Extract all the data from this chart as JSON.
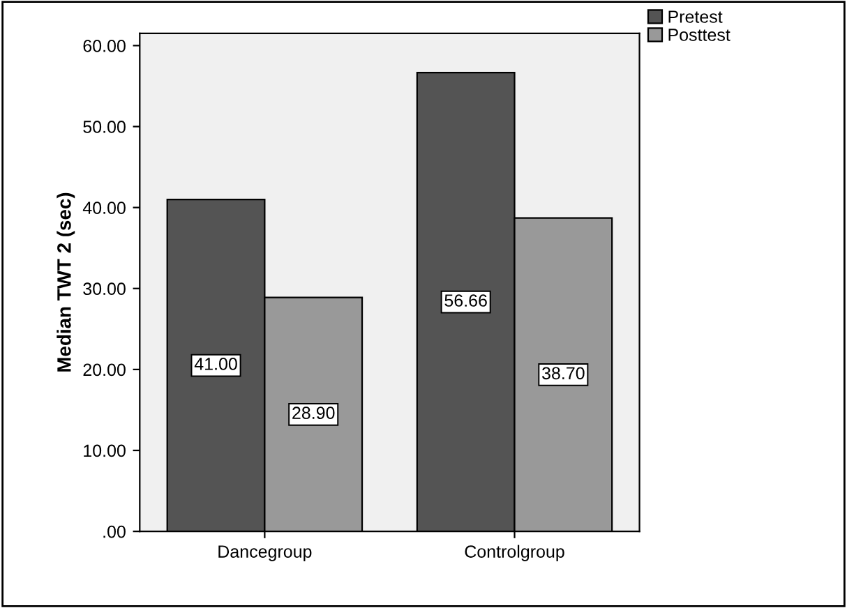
{
  "chart_data": {
    "type": "bar",
    "ylabel": "Median TWT 2 (sec)",
    "categories": [
      "Dancegroup",
      "Controlgroup"
    ],
    "series": [
      {
        "name": "Pretest",
        "color": "#545454",
        "values": [
          41.0,
          56.66
        ],
        "value_labels": [
          "41.00",
          "56.66"
        ]
      },
      {
        "name": "Posttest",
        "color": "#999999",
        "values": [
          28.9,
          38.7
        ],
        "value_labels": [
          "28.90",
          "38.70"
        ]
      }
    ],
    "ylim": [
      0,
      61.5
    ],
    "yticks": [
      {
        "value": 0,
        "label": ".00"
      },
      {
        "value": 10,
        "label": "10.00"
      },
      {
        "value": 20,
        "label": "20.00"
      },
      {
        "value": 30,
        "label": "30.00"
      },
      {
        "value": 40,
        "label": "40.00"
      },
      {
        "value": 50,
        "label": "50.00"
      },
      {
        "value": 60,
        "label": "60.00"
      }
    ],
    "grid": false,
    "legend": "top right"
  }
}
